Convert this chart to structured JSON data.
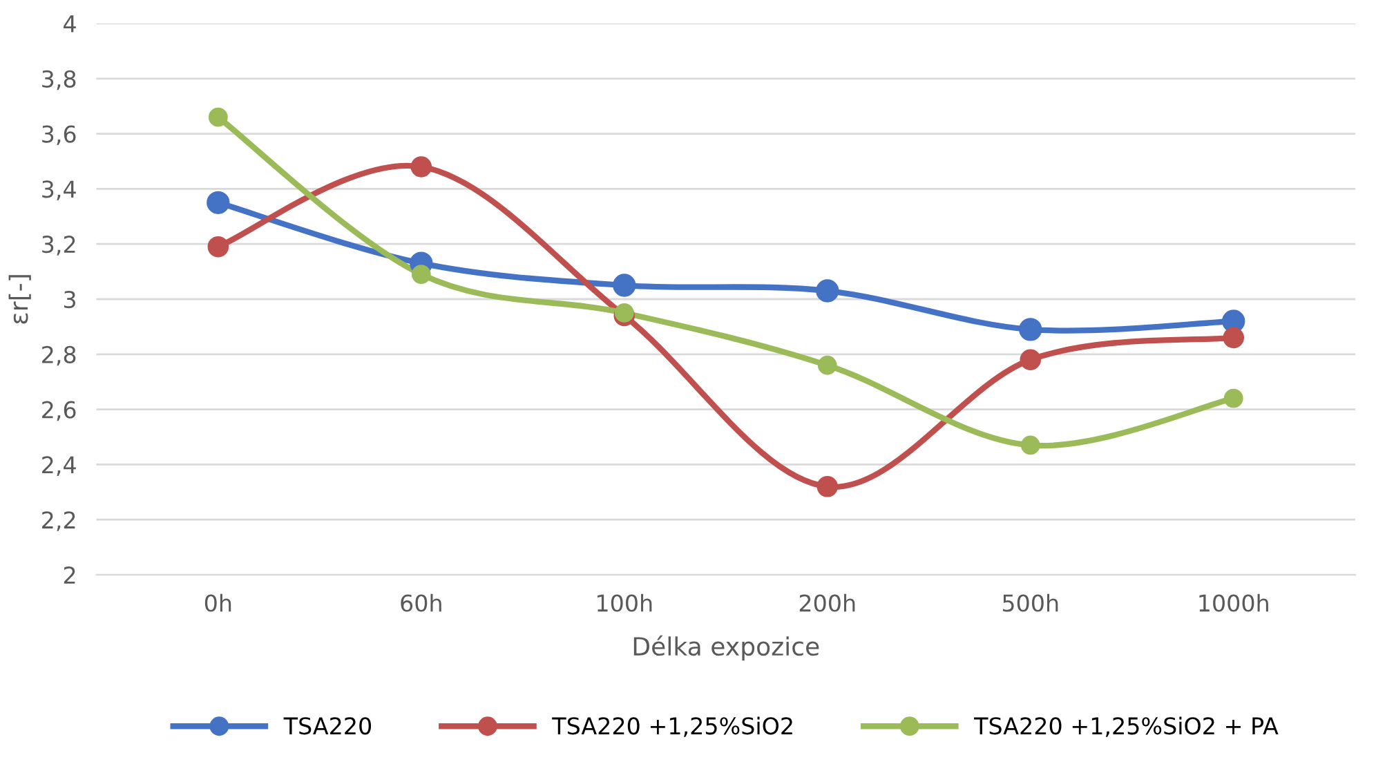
{
  "chart_data": {
    "type": "line",
    "xlabel": "Délka expozice",
    "ylabel": "εr[-]",
    "categories": [
      "0h",
      "60h",
      "100h",
      "200h",
      "500h",
      "1000h"
    ],
    "series": [
      {
        "name": "TSA220",
        "color": "#4472c4",
        "values": [
          3.35,
          3.13,
          3.05,
          3.03,
          2.89,
          2.92
        ]
      },
      {
        "name": "TSA220 +1,25%SiO2",
        "color": "#c0504d",
        "values": [
          3.19,
          3.48,
          2.94,
          2.32,
          2.78,
          2.86
        ]
      },
      {
        "name": "TSA220 +1,25%SiO2 + PA",
        "color": "#9bbb59",
        "values": [
          3.66,
          3.09,
          2.95,
          2.76,
          2.47,
          2.64
        ]
      }
    ],
    "ylim": [
      2,
      4
    ],
    "yticks": [
      2,
      {
        "value": 2.2,
        "label": "2,2"
      },
      {
        "value": 2.4,
        "label": "2,4"
      },
      {
        "value": 2.6,
        "label": "2,6"
      },
      {
        "value": 2.8,
        "label": "2,8"
      },
      3,
      {
        "value": 3.2,
        "label": "3,2"
      },
      {
        "value": 3.4,
        "label": "3,4"
      },
      {
        "value": 3.6,
        "label": "3,6"
      },
      {
        "value": 3.8,
        "label": "3,8"
      },
      4
    ],
    "grid": "y",
    "legend": "bottom",
    "marker": "circle",
    "line_style": "solid"
  }
}
